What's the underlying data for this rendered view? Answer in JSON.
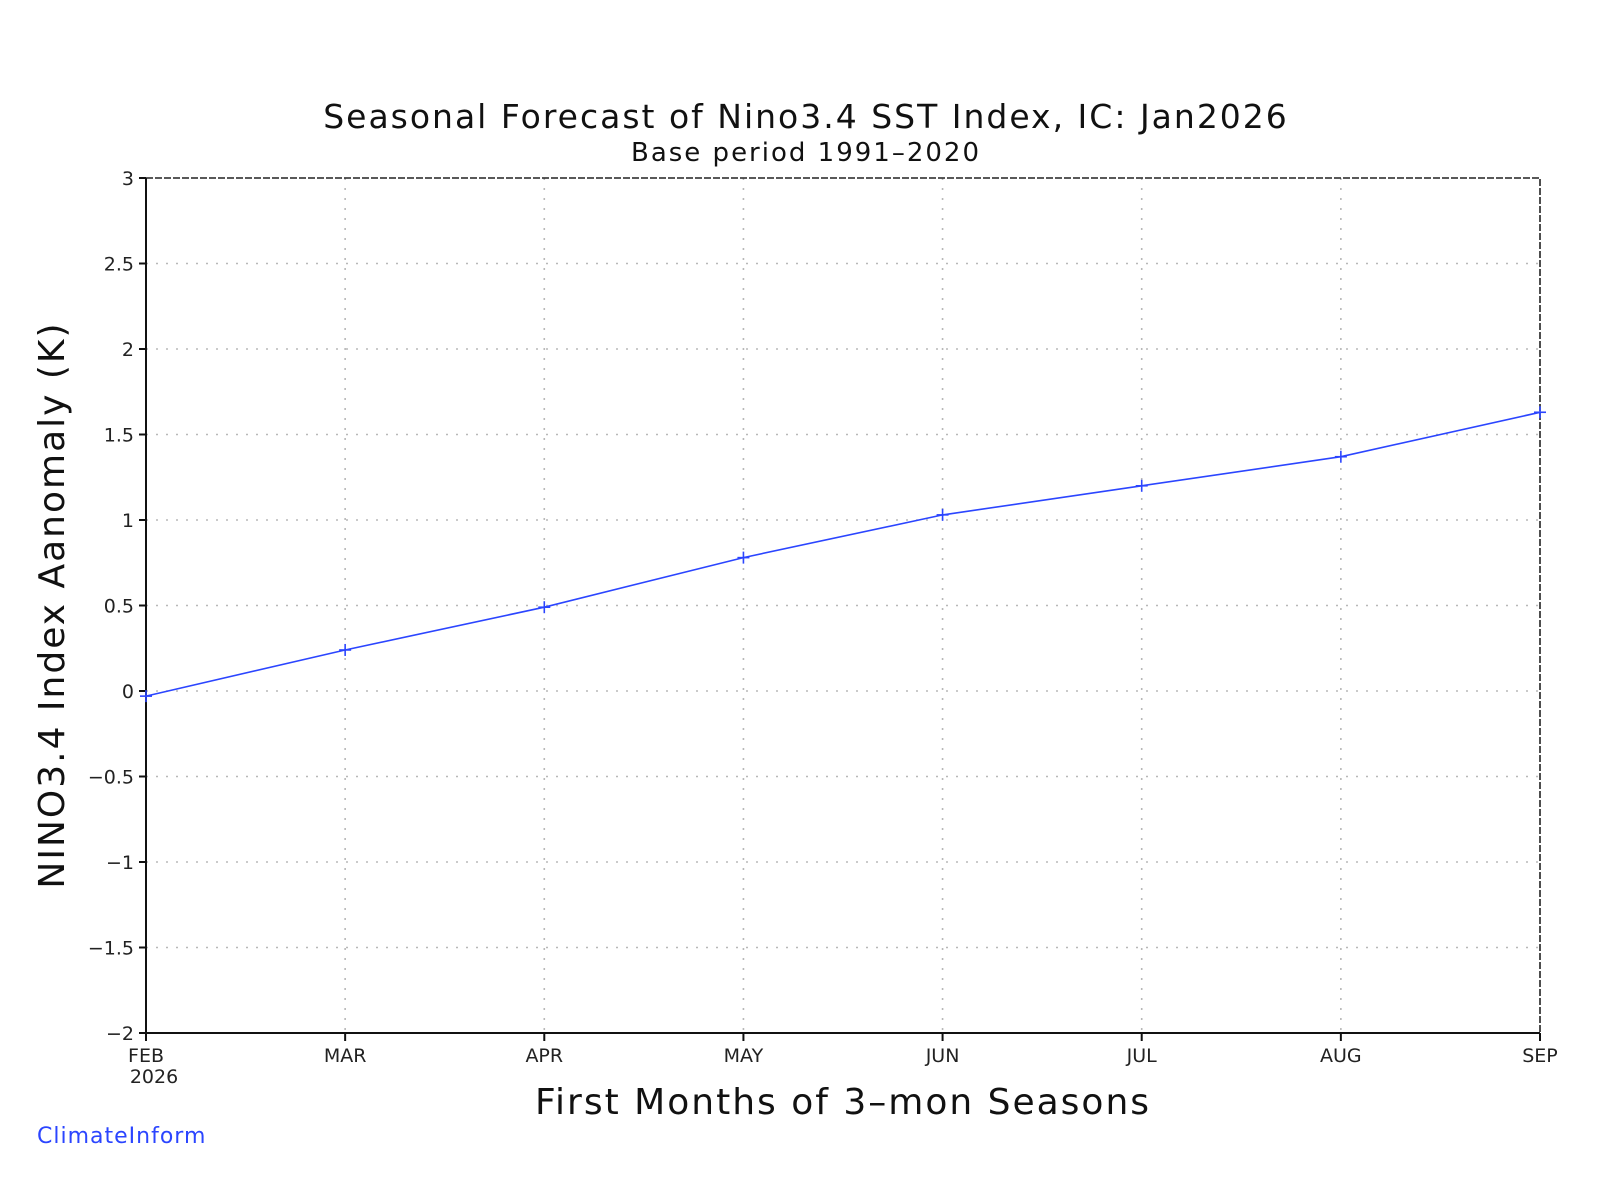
{
  "chart_data": {
    "type": "line",
    "title": "Seasonal Forecast of Nino3.4 SST Index, IC: Jan2026",
    "subtitle": "Base period 1991–2020",
    "xlabel": "First Months of 3–mon Seasons",
    "ylabel": "NINO3.4 Index Aanomaly (K)",
    "categories": [
      "FEB",
      "MAR",
      "APR",
      "MAY",
      "JUN",
      "JUL",
      "AUG",
      "SEP"
    ],
    "category_sublabel": "2026",
    "series": [
      {
        "values": [
          -0.03,
          0.24,
          0.49,
          0.78,
          1.03,
          1.2,
          1.37,
          1.63
        ],
        "color": "#2b45ff",
        "marker": "plus"
      }
    ],
    "ylim": [
      -2,
      3
    ],
    "yticks": [
      3,
      2.5,
      2,
      1.5,
      1,
      0.5,
      0,
      -0.5,
      -1,
      -1.5,
      -2
    ],
    "ytick_labels": [
      "3",
      "2.5",
      "2",
      "1.5",
      "1",
      "0.5",
      "0",
      "−0.5",
      "−1",
      "−1.5",
      "−2"
    ],
    "grid": true
  },
  "credit": "ClimateInform"
}
